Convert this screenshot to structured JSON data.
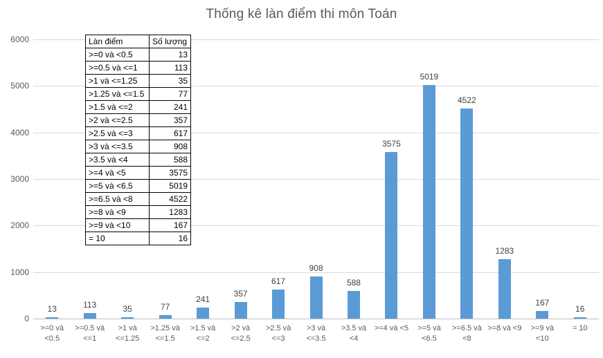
{
  "chart_data": {
    "type": "bar",
    "title": "Thống kê làn điểm thi môn Toán",
    "categories": [
      ">=0 và <0.5",
      ">=0.5 và <=1",
      ">1 và <=1.25",
      ">1.25 và <=1.5",
      ">1.5 và <=2",
      ">2 và <=2.5",
      ">2.5 và <=3",
      ">3 và <=3.5",
      ">3.5 và <4",
      ">=4 và <5",
      ">=5 và <6.5",
      ">=6.5 và <8",
      ">=8 và <9",
      ">=9 và <10",
      "= 10"
    ],
    "values": [
      13,
      113,
      35,
      77,
      241,
      357,
      617,
      908,
      588,
      3575,
      5019,
      4522,
      1283,
      167,
      16
    ],
    "xlabel": "",
    "ylabel": "",
    "ylim": [
      0,
      6000
    ],
    "yticks": [
      0,
      1000,
      2000,
      3000,
      4000,
      5000,
      6000
    ],
    "grid": true,
    "legend": false,
    "data_labels": true,
    "colors": {
      "bar": "#5b9bd5",
      "title_text": "#595959",
      "axis_text": "#595959",
      "data_label_text": "#404040",
      "gridline": "#d9d9d9",
      "axis_line": "#bfbfbf",
      "background": "#ffffff",
      "table_border": "#000000"
    }
  },
  "table": {
    "headers": [
      "Làn điểm",
      "Số lượng"
    ],
    "rows": [
      [
        ">=0 và <0.5",
        "13"
      ],
      [
        ">=0.5 và <=1",
        "113"
      ],
      [
        ">1 và <=1.25",
        "35"
      ],
      [
        ">1.25 và <=1.5",
        "77"
      ],
      [
        ">1.5 và <=2",
        "241"
      ],
      [
        ">2 và <=2.5",
        "357"
      ],
      [
        ">2.5 và <=3",
        "617"
      ],
      [
        ">3 và <=3.5",
        "908"
      ],
      [
        ">3.5 và <4",
        "588"
      ],
      [
        ">=4 và <5",
        "3575"
      ],
      [
        ">=5 và <6.5",
        "5019"
      ],
      [
        ">=6.5 và <8",
        "4522"
      ],
      [
        ">=8 và <9",
        "1283"
      ],
      [
        ">=9 và <10",
        "167"
      ],
      [
        "= 10",
        "16"
      ]
    ]
  }
}
